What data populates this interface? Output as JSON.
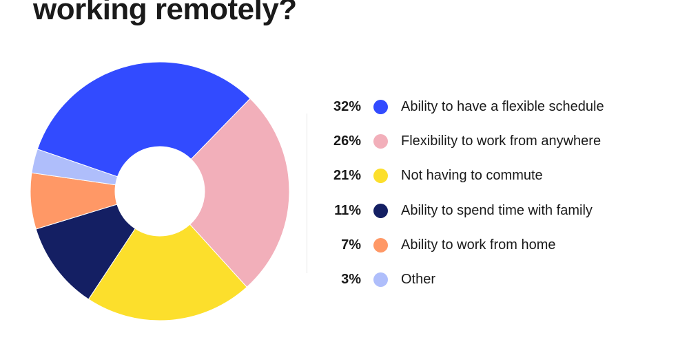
{
  "title": "working remotely?",
  "chart_data": {
    "type": "pie",
    "donut": true,
    "slices": [
      {
        "label": "Ability to have a flexible schedule",
        "value": 32,
        "display": "32%",
        "color": "#324BFF"
      },
      {
        "label": "Flexibility to work from anywhere",
        "value": 26,
        "display": "26%",
        "color": "#F2AFBA"
      },
      {
        "label": "Not having to commute",
        "value": 21,
        "display": "21%",
        "color": "#FCDF2C"
      },
      {
        "label": "Ability to spend time with family",
        "value": 11,
        "display": "11%",
        "color": "#141F63"
      },
      {
        "label": "Ability to work from home",
        "value": 7,
        "display": "7%",
        "color": "#FF9866"
      },
      {
        "label": "Other",
        "value": 3,
        "display": "3%",
        "color": "#AFBEFB"
      }
    ],
    "legend_position": "right"
  }
}
